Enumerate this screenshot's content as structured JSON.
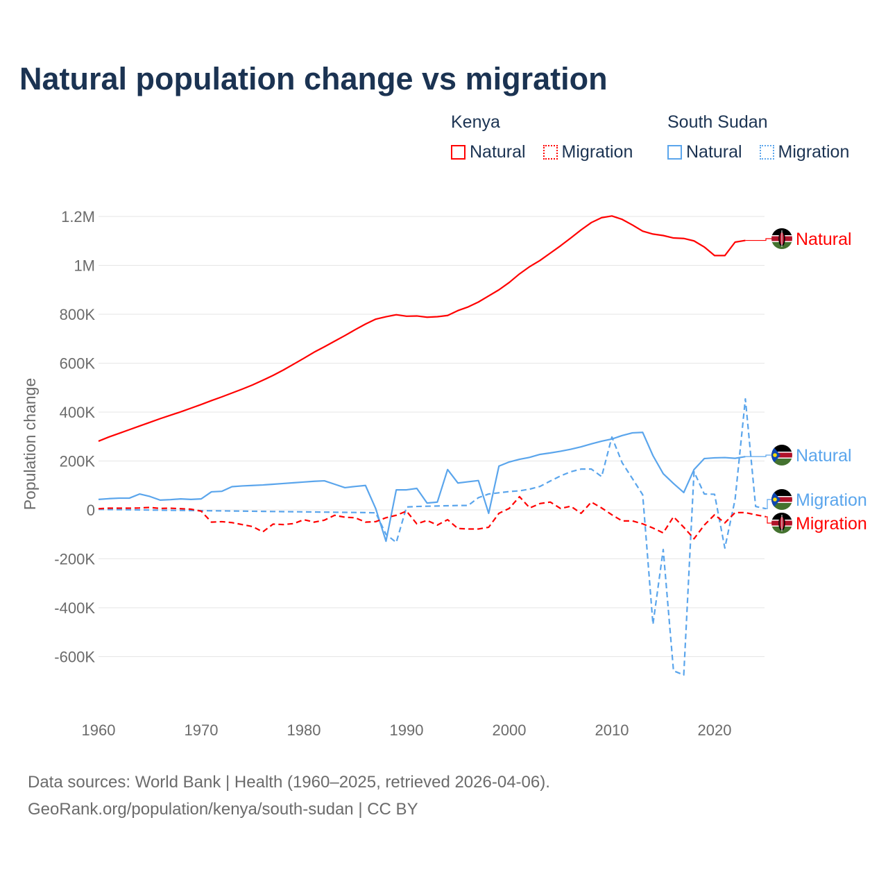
{
  "title": "Natural population change vs migration",
  "legend": {
    "groups": [
      {
        "name": "Kenya",
        "items": [
          {
            "label": "Natural",
            "style": "solid"
          },
          {
            "label": "Migration",
            "style": "dotted"
          }
        ],
        "color": "#ff0000"
      },
      {
        "name": "South Sudan",
        "items": [
          {
            "label": "Natural",
            "style": "solid"
          },
          {
            "label": "Migration",
            "style": "dotted"
          }
        ],
        "color": "#5aa5ec"
      }
    ]
  },
  "footer": {
    "line1": "Data sources: World Bank | Health (1960–2025, retrieved 2026-04-06).",
    "line2": "GeoRank.org/population/kenya/south-sudan | CC BY"
  },
  "chart_data": {
    "type": "line",
    "title": "Natural population change vs migration",
    "xlabel": "",
    "ylabel": "Population change",
    "xlim": [
      1960,
      2025
    ],
    "ylim": [
      -750000,
      1250000
    ],
    "x_ticks": [
      1960,
      1970,
      1980,
      1990,
      2000,
      2010,
      2020
    ],
    "x_tick_labels": [
      "1960",
      "1970",
      "1980",
      "1990",
      "2000",
      "2010",
      "2020"
    ],
    "y_ticks": [
      -600000,
      -400000,
      -200000,
      0,
      200000,
      400000,
      600000,
      800000,
      1000000,
      1200000
    ],
    "y_tick_labels": [
      "-600K",
      "-400K",
      "-200K",
      "0",
      "200K",
      "400K",
      "600K",
      "800K",
      "1M",
      "1.2M"
    ],
    "grid": true,
    "legend_position": "top-right",
    "series": [
      {
        "name": "Kenya Natural",
        "country": "Kenya",
        "end_label": "Natural",
        "color": "#ff0000",
        "dash": "solid",
        "start_year": 1960,
        "values": [
          281000,
          298000,
          313000,
          328000,
          343000,
          358000,
          373000,
          387000,
          401000,
          416000,
          431000,
          447000,
          462000,
          478000,
          494000,
          511000,
          530000,
          550000,
          572000,
          596000,
          620000,
          645000,
          667000,
          690000,
          713000,
          737000,
          760000,
          780000,
          790000,
          798000,
          792000,
          793000,
          788000,
          790000,
          795000,
          815000,
          830000,
          850000,
          875000,
          900000,
          930000,
          965000,
          995000,
          1020000,
          1050000,
          1080000,
          1112000,
          1145000,
          1175000,
          1195000,
          1202000,
          1188000,
          1165000,
          1140000,
          1128000,
          1122000,
          1112000,
          1110000,
          1100000,
          1075000,
          1040000,
          1040000,
          1095000,
          1102000
        ]
      },
      {
        "name": "South Sudan Natural",
        "country": "South Sudan",
        "end_label": "Natural",
        "color": "#5aa5ec",
        "dash": "solid",
        "start_year": 1960,
        "values": [
          43000,
          46000,
          48000,
          48000,
          65000,
          55000,
          40000,
          42000,
          45000,
          43000,
          45000,
          74000,
          76000,
          95000,
          98000,
          100000,
          102000,
          105000,
          108000,
          111000,
          114000,
          117000,
          119000,
          105000,
          91000,
          96000,
          100000,
          5000,
          -128000,
          82000,
          82000,
          88000,
          28000,
          32000,
          165000,
          110000,
          115000,
          120000,
          -14000,
          179000,
          196000,
          207000,
          215000,
          227000,
          233000,
          240000,
          248000,
          258000,
          270000,
          281000,
          290000,
          304000,
          315000,
          317000,
          222000,
          148000,
          108000,
          71000,
          165000,
          210000,
          213000,
          214000,
          211000,
          218000
        ]
      },
      {
        "name": "South Sudan Migration",
        "country": "South Sudan",
        "end_label": "Migration",
        "color": "#5aa5ec",
        "dash": "dashed",
        "start_year": 1960,
        "values": [
          2000,
          1500,
          1000,
          500,
          0,
          -500,
          -1000,
          -1500,
          -2000,
          -2500,
          -3000,
          -3500,
          -4000,
          -4500,
          -5000,
          -5500,
          -6000,
          -6500,
          -7000,
          -7500,
          -8000,
          -8500,
          -9000,
          -9500,
          -10000,
          -10500,
          -11000,
          -12000,
          -100000,
          -133000,
          12000,
          14000,
          15000,
          16000,
          17000,
          18000,
          18000,
          50000,
          65000,
          70000,
          75000,
          78000,
          85000,
          96000,
          118000,
          139000,
          156000,
          167000,
          167000,
          136000,
          298000,
          193000,
          128000,
          62000,
          -468000,
          -162000,
          -658000,
          -675000,
          156000,
          65000,
          64000,
          -156000,
          43000,
          454000,
          14000,
          5000
        ]
      },
      {
        "name": "Kenya Migration",
        "country": "Kenya",
        "end_label": "Migration",
        "color": "#ff0000",
        "dash": "dashed",
        "start_year": 1960,
        "values": [
          5000,
          7000,
          7000,
          7000,
          8000,
          10000,
          6000,
          7000,
          5000,
          3000,
          -5000,
          -50000,
          -48000,
          -52000,
          -60000,
          -68000,
          -90000,
          -58000,
          -60000,
          -56000,
          -40000,
          -50000,
          -42000,
          -22000,
          -30000,
          -32000,
          -50000,
          -48000,
          -32000,
          -22000,
          -5000,
          -57000,
          -43000,
          -62000,
          -40000,
          -76000,
          -78000,
          -78000,
          -71000,
          -14000,
          6000,
          54000,
          8000,
          26000,
          32000,
          6000,
          15000,
          -14000,
          32000,
          8000,
          -20000,
          -45000,
          -45000,
          -57000,
          -74000,
          -94000,
          -28000,
          -71000,
          -118000,
          -62000,
          -20000,
          -53000,
          -11000,
          -11000,
          -20000,
          -28000
        ]
      }
    ]
  }
}
